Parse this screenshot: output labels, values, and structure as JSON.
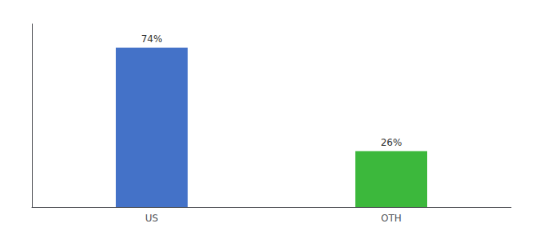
{
  "chart_data": {
    "type": "bar",
    "categories": [
      "US",
      "OTH"
    ],
    "values": [
      74,
      26
    ],
    "value_labels": [
      "74%",
      "26%"
    ],
    "data_labels": true,
    "colors": [
      "#4472c8",
      "#3cb83c"
    ],
    "ylim": [
      0,
      85
    ],
    "tick_labels": "x",
    "grid": false
  }
}
